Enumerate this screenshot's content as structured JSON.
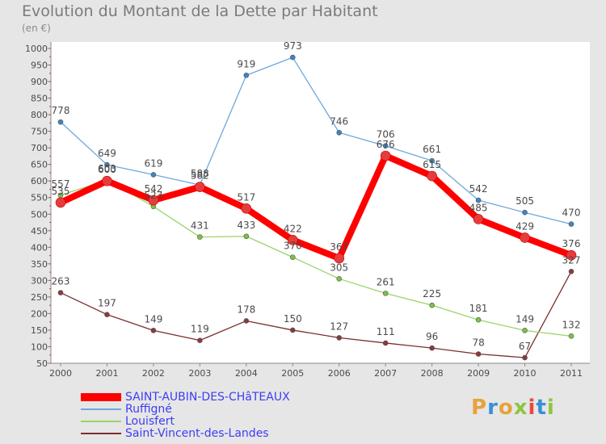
{
  "title": "Evolution du Montant de la Dette par Habitant",
  "unit_label": "(en €)",
  "logo": {
    "text": "Proxiti",
    "letters": [
      {
        "ch": "P",
        "color": "#e8a23a"
      },
      {
        "ch": "r",
        "color": "#3a8fd6"
      },
      {
        "ch": "o",
        "color": "#e8a23a"
      },
      {
        "ch": "x",
        "color": "#8cc63f"
      },
      {
        "ch": "i",
        "color": "#e84b3a"
      },
      {
        "ch": "t",
        "color": "#3a8fd6"
      },
      {
        "ch": "i",
        "color": "#8cc63f"
      }
    ]
  },
  "chart_data": {
    "type": "line",
    "title": "Evolution du Montant de la Dette par Habitant",
    "ylabel": "(en €)",
    "x": [
      "2000",
      "2001",
      "2002",
      "2003",
      "2004",
      "2005",
      "2006",
      "2007",
      "2008",
      "2009",
      "2010",
      "2011"
    ],
    "ylim": [
      50,
      1000
    ],
    "yticks": [
      50,
      100,
      150,
      200,
      250,
      300,
      350,
      400,
      450,
      500,
      550,
      600,
      650,
      700,
      750,
      800,
      850,
      900,
      950,
      1000
    ],
    "grid": false,
    "legend_position": "bottom-left",
    "series": [
      {
        "name": "SAINT-AUBIN-DES-CHâTEAUX",
        "color": "#ff0000",
        "marker_color": "#e83c3c",
        "width": 8,
        "values": [
          535,
          600,
          542,
          582,
          517,
          422,
          367,
          676,
          615,
          485,
          429,
          376
        ],
        "labels": [
          "535",
          "600",
          "542",
          "582",
          "517",
          "422",
          "367",
          "676",
          "615",
          "485",
          "429",
          "376"
        ]
      },
      {
        "name": "Ruffigné",
        "color": "#6fa8dc",
        "marker_color": "#3d85c6",
        "width": 1.3,
        "values": [
          778,
          649,
          619,
          588,
          919,
          973,
          746,
          706,
          661,
          542,
          505,
          470
        ],
        "labels": [
          "778",
          "649",
          "619",
          "588",
          "919",
          "973",
          "746",
          "706",
          "661",
          "542",
          "505",
          "470"
        ]
      },
      {
        "name": "Louisfert",
        "color": "#99d56a",
        "marker_color": "#7cc242",
        "width": 1.3,
        "values": [
          557,
          603,
          523,
          431,
          433,
          370,
          305,
          261,
          225,
          181,
          149,
          132
        ],
        "labels": [
          "557",
          "603",
          "523",
          "431",
          "433",
          "370",
          "305",
          "261",
          "225",
          "181",
          "149",
          "132"
        ]
      },
      {
        "name": "Saint-Vincent-des-Landes",
        "color": "#7b2e2e",
        "marker_color": "#8b3a3a",
        "width": 1.3,
        "values": [
          263,
          197,
          149,
          119,
          178,
          150,
          127,
          111,
          96,
          78,
          67,
          327
        ],
        "labels": [
          "263",
          "197",
          "149",
          "119",
          "178",
          "150",
          "127",
          "111",
          "96",
          "78",
          "67",
          "327"
        ]
      }
    ]
  }
}
